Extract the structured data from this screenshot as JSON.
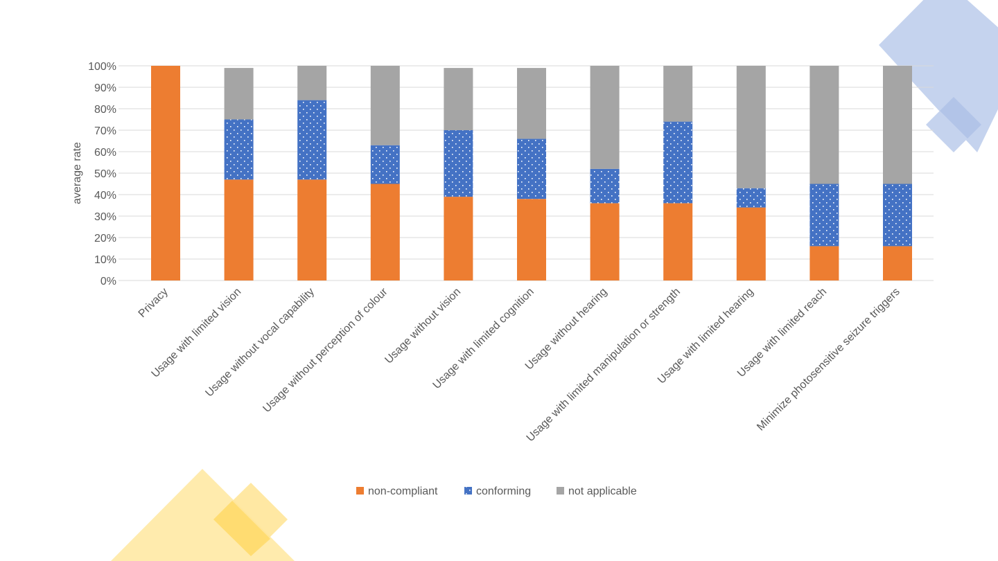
{
  "chart_data": {
    "type": "bar",
    "stacked": true,
    "title": "",
    "xlabel": "",
    "ylabel": "average rate",
    "ylim": [
      0,
      100
    ],
    "yticks": [
      "0%",
      "10%",
      "20%",
      "30%",
      "40%",
      "50%",
      "60%",
      "70%",
      "80%",
      "90%",
      "100%"
    ],
    "grid": true,
    "legend_position": "bottom",
    "categories": [
      "Privacy",
      "Usage with limited vision",
      "Usage without vocal capability",
      "Usage without perception of colour",
      "Usage without vision",
      "Usage with limited cognition",
      "Usage without hearing",
      "Usage with limited manipulation or strength",
      "Usage with limited hearing",
      "Usage with limited reach",
      "Minimize photosensitive seizure triggers"
    ],
    "series": [
      {
        "name": "non-compliant",
        "color": "#ED7D31",
        "values": [
          100,
          47,
          47,
          45,
          39,
          38,
          36,
          36,
          34,
          16,
          16
        ]
      },
      {
        "name": "conforming",
        "color": "#4472C4",
        "pattern": "dotted",
        "values": [
          0,
          28,
          37,
          18,
          31,
          28,
          16,
          38,
          9,
          29,
          29
        ]
      },
      {
        "name": "not applicable",
        "color": "#A5A5A5",
        "values": [
          0,
          24,
          16,
          37,
          29,
          33,
          48,
          26,
          57,
          55,
          55
        ]
      }
    ]
  },
  "decoration_colors": {
    "blue": "#C5D3EE",
    "yellow": "#FFE699"
  }
}
